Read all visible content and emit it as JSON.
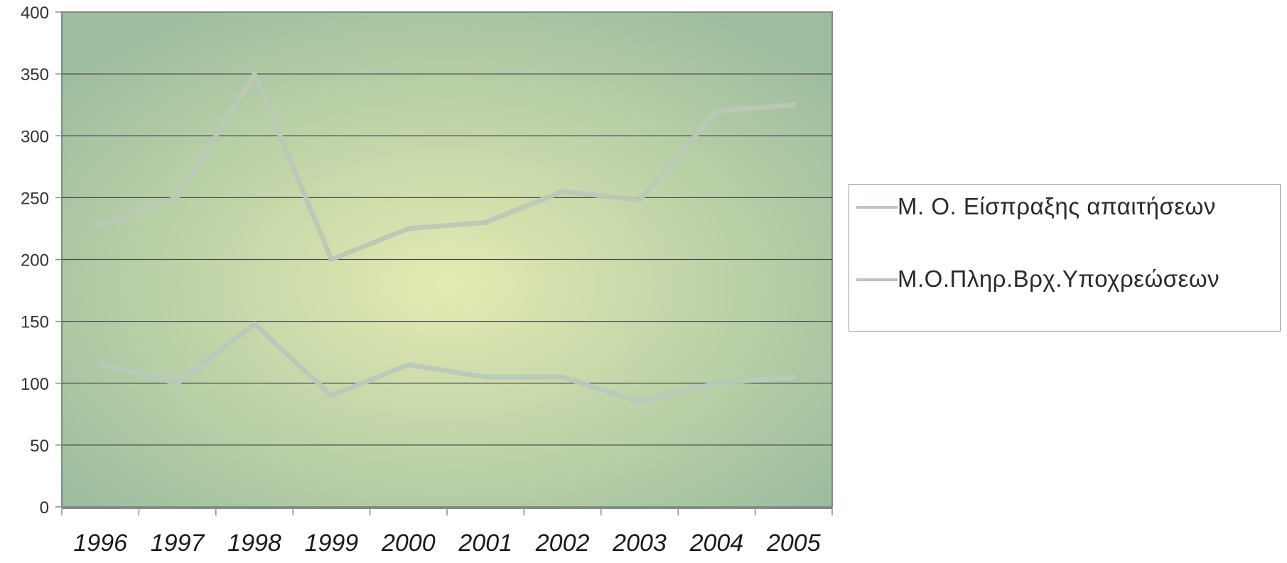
{
  "chart_data": {
    "type": "line",
    "categories": [
      "1996",
      "1997",
      "1998",
      "1999",
      "2000",
      "2001",
      "2002",
      "2003",
      "2004",
      "2005"
    ],
    "series": [
      {
        "name": "Μ. Ο. Είσπραξης απαιτήσεων",
        "color": "#bcc8b6",
        "values": [
          228,
          250,
          350,
          200,
          225,
          230,
          255,
          248,
          320,
          325
        ]
      },
      {
        "name": "Μ.Ο.Πληρ.Βρχ.Υποχρεώσεων",
        "color": "#b9c8bc",
        "values": [
          115,
          100,
          148,
          90,
          115,
          105,
          105,
          85,
          100,
          105
        ]
      }
    ],
    "yticks": [
      "0",
      "50",
      "100",
      "150",
      "200",
      "250",
      "300",
      "350",
      "400"
    ],
    "ylim": [
      0,
      400
    ],
    "grid": true,
    "legend": "right",
    "title": "",
    "xlabel": "",
    "ylabel": "",
    "colors": {
      "plot_center": "#e4ebb2",
      "plot_edge": "#9dbd9f",
      "gridline": "#4a4a4a",
      "axis": "#8a8a8a",
      "plot_border": "#7f8f80"
    }
  }
}
